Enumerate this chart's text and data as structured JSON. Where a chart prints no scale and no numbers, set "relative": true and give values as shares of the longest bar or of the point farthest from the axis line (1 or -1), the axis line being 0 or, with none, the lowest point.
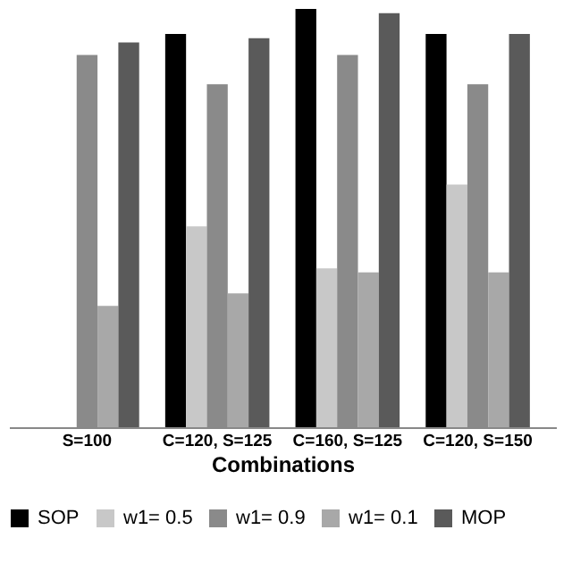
{
  "chart_data": {
    "type": "bar",
    "xlabel": "Combinations",
    "relative": true,
    "categories": [
      "S=100",
      "C=120, S=125",
      "C=160, S=125",
      "C=120, S=150"
    ],
    "series": [
      {
        "name": "SOP",
        "color": "#000000",
        "values": [
          null,
          0.94,
          1,
          0.94
        ]
      },
      {
        "name": "w1= 0.5",
        "color": "#c8c8c8",
        "values": [
          null,
          0.48,
          0.38,
          0.58
        ]
      },
      {
        "name": "w1= 0.9",
        "color": "#8a8a8a",
        "values": [
          0.89,
          0.82,
          0.89,
          0.82
        ]
      },
      {
        "name": "w1= 0.1",
        "color": "#a8a8a8",
        "values": [
          0.29,
          0.32,
          0.37,
          0.37
        ]
      },
      {
        "name": "MOP",
        "color": "#5a5a5a",
        "values": [
          0.92,
          0.93,
          0.99,
          0.94
        ]
      }
    ],
    "legend": "bottom",
    "grid": false
  }
}
